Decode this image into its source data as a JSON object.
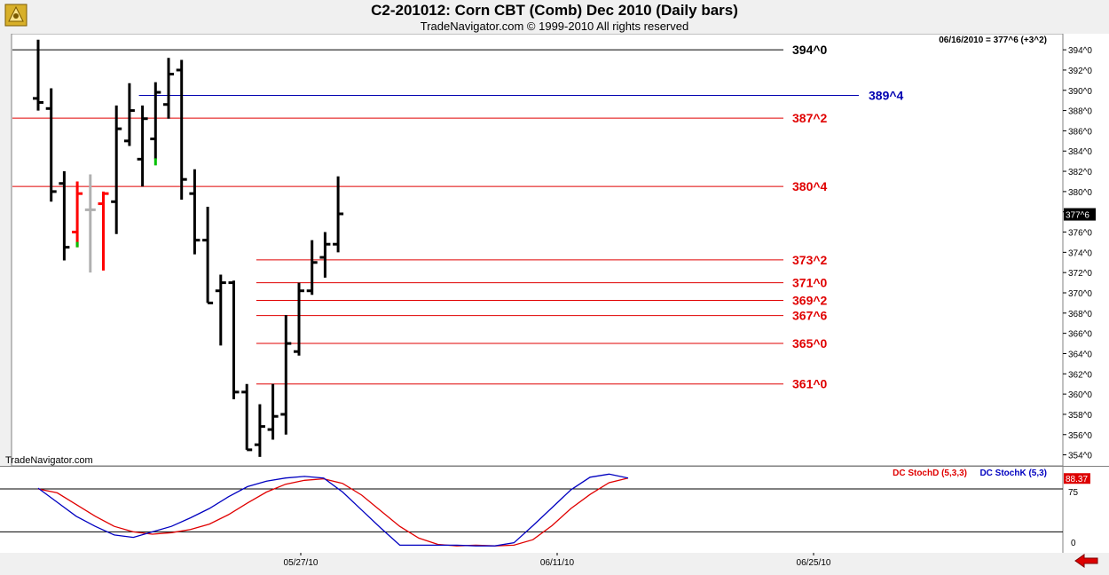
{
  "header": {
    "title": "C2-201012:  Corn CBT (Comb) Dec 2010  (Daily bars)",
    "copyright": "TradeNavigator.com © 1999-2010 All rights reserved"
  },
  "quote_info": "06/16/2010 = 377^6 (+3^2)",
  "watermark": "TradeNavigator.com",
  "current_price_label": "377^6",
  "chart_data": {
    "type": "ohlc_bar",
    "title": "C2-201012:  Corn CBT (Comb) Dec 2010  (Daily bars)",
    "ylim": [
      353,
      395.5
    ],
    "y_ticks": [
      354,
      356,
      358,
      360,
      362,
      364,
      366,
      368,
      370,
      372,
      374,
      376,
      378,
      380,
      382,
      384,
      386,
      388,
      390,
      392,
      394
    ],
    "y_tick_labels": [
      "354^0",
      "356^0",
      "358^0",
      "360^0",
      "362^0",
      "364^0",
      "366^0",
      "368^0",
      "370^0",
      "372^0",
      "374^0",
      "376^0",
      "378^0",
      "380^0",
      "382^0",
      "384^0",
      "386^0",
      "388^0",
      "390^0",
      "392^0",
      "394^0"
    ],
    "x_date_labels": [
      "05/27/10",
      "06/11/10",
      "06/25/10"
    ],
    "bar_colors": {
      "normal": "#000000",
      "limit_up": "#00c000",
      "limit_down": "#ff0000",
      "inactive": "#b0b0b0"
    },
    "bars": [
      {
        "open": 389.2,
        "high": 395.0,
        "low": 388.0,
        "close": 388.8,
        "color": "#000000"
      },
      {
        "open": 388.2,
        "high": 390.2,
        "low": 379.0,
        "close": 380.0,
        "color": "#000000"
      },
      {
        "open": 380.8,
        "high": 382.0,
        "low": 373.2,
        "close": 374.5,
        "color": "#000000"
      },
      {
        "open": 376.0,
        "high": 381.0,
        "low": 374.5,
        "close": 379.8,
        "color": "#ff0000",
        "close_marker_color": "#00c000"
      },
      {
        "open": 378.2,
        "high": 381.7,
        "low": 372.0,
        "close": 378.2,
        "color": "#b0b0b0"
      },
      {
        "open": 378.8,
        "high": 380.0,
        "low": 372.2,
        "close": 379.8,
        "color": "#ff0000"
      },
      {
        "open": 379.0,
        "high": 388.5,
        "low": 375.8,
        "close": 386.2,
        "color": "#000000"
      },
      {
        "open": 385.0,
        "high": 390.7,
        "low": 384.5,
        "close": 388.0,
        "color": "#000000"
      },
      {
        "open": 383.2,
        "high": 388.5,
        "low": 380.5,
        "close": 387.2,
        "color": "#000000"
      },
      {
        "open": 385.2,
        "high": 390.8,
        "low": 383.2,
        "close": 389.8,
        "color": "#000000",
        "low_marker_color": "#00c000"
      },
      {
        "open": 388.6,
        "high": 393.2,
        "low": 387.2,
        "close": 391.6,
        "color": "#000000"
      },
      {
        "open": 392.0,
        "high": 393.0,
        "low": 379.2,
        "close": 381.2,
        "color": "#000000"
      },
      {
        "open": 379.8,
        "high": 382.2,
        "low": 373.8,
        "close": 375.2,
        "color": "#000000"
      },
      {
        "open": 375.2,
        "high": 378.5,
        "low": 369.0,
        "close": 369.0,
        "color": "#000000"
      },
      {
        "open": 370.2,
        "high": 371.8,
        "low": 364.8,
        "close": 371.0,
        "color": "#000000"
      },
      {
        "open": 371.0,
        "high": 371.2,
        "low": 359.5,
        "close": 360.2,
        "color": "#000000"
      },
      {
        "open": 360.2,
        "high": 361.0,
        "low": 354.5,
        "close": 354.5,
        "color": "#000000"
      },
      {
        "open": 355.0,
        "high": 359.0,
        "low": 353.8,
        "close": 356.8,
        "color": "#000000"
      },
      {
        "open": 356.5,
        "high": 361.0,
        "low": 355.5,
        "close": 357.8,
        "color": "#000000"
      },
      {
        "open": 358.0,
        "high": 367.8,
        "low": 356.0,
        "close": 365.0,
        "color": "#000000"
      },
      {
        "open": 364.2,
        "high": 371.0,
        "low": 363.8,
        "close": 370.2,
        "color": "#000000"
      },
      {
        "open": 370.2,
        "high": 375.2,
        "low": 369.8,
        "close": 373.0,
        "color": "#000000"
      },
      {
        "open": 373.5,
        "high": 376.0,
        "low": 371.5,
        "close": 374.8,
        "color": "#000000"
      },
      {
        "open": 374.8,
        "high": 381.5,
        "low": 374.0,
        "close": 377.8,
        "color": "#000000"
      }
    ],
    "levels": [
      {
        "value": 394.0,
        "label": "394^0",
        "color": "#000000",
        "start_bar": 0
      },
      {
        "value": 389.5,
        "label": "389^4",
        "color": "#0000b0",
        "start_bar": 8
      },
      {
        "value": 387.25,
        "label": "387^2",
        "color": "#e00000",
        "start_bar": 0
      },
      {
        "value": 380.5,
        "label": "380^4",
        "color": "#e00000",
        "start_bar": 0
      },
      {
        "value": 373.25,
        "label": "373^2",
        "color": "#e00000",
        "start_bar": 17
      },
      {
        "value": 371.0,
        "label": "371^0",
        "color": "#e00000",
        "start_bar": 17
      },
      {
        "value": 369.25,
        "label": "369^2",
        "color": "#e00000",
        "start_bar": 17
      },
      {
        "value": 367.75,
        "label": "367^6",
        "color": "#e00000",
        "start_bar": 17
      },
      {
        "value": 365.0,
        "label": "365^0",
        "color": "#e00000",
        "start_bar": 17
      },
      {
        "value": 361.0,
        "label": "361^0",
        "color": "#e00000",
        "start_bar": 17
      }
    ],
    "stochastic": {
      "legend_d": "DC StochD (5,3,3)",
      "legend_k": "DC StochK (5,3)",
      "d_color": "#e00000",
      "k_color": "#0000c0",
      "ylim": [
        0,
        100
      ],
      "ref_levels": [
        75,
        20
      ],
      "y_tick_labels": [
        "75",
        "0"
      ],
      "last_value_label": "88.37",
      "k_values": [
        76,
        58,
        40,
        27,
        16,
        13,
        20,
        27,
        38,
        50,
        65,
        78,
        85,
        89,
        91,
        89,
        71,
        48,
        25,
        3,
        3,
        3,
        3,
        2,
        2,
        6,
        28,
        51,
        74,
        90,
        94,
        89
      ],
      "d_values": [
        75,
        70,
        55,
        40,
        27,
        20,
        17,
        19,
        23,
        30,
        42,
        57,
        71,
        81,
        86,
        88,
        82,
        67,
        47,
        27,
        12,
        4,
        2,
        3,
        2,
        3,
        10,
        28,
        50,
        68,
        83,
        89
      ]
    }
  }
}
